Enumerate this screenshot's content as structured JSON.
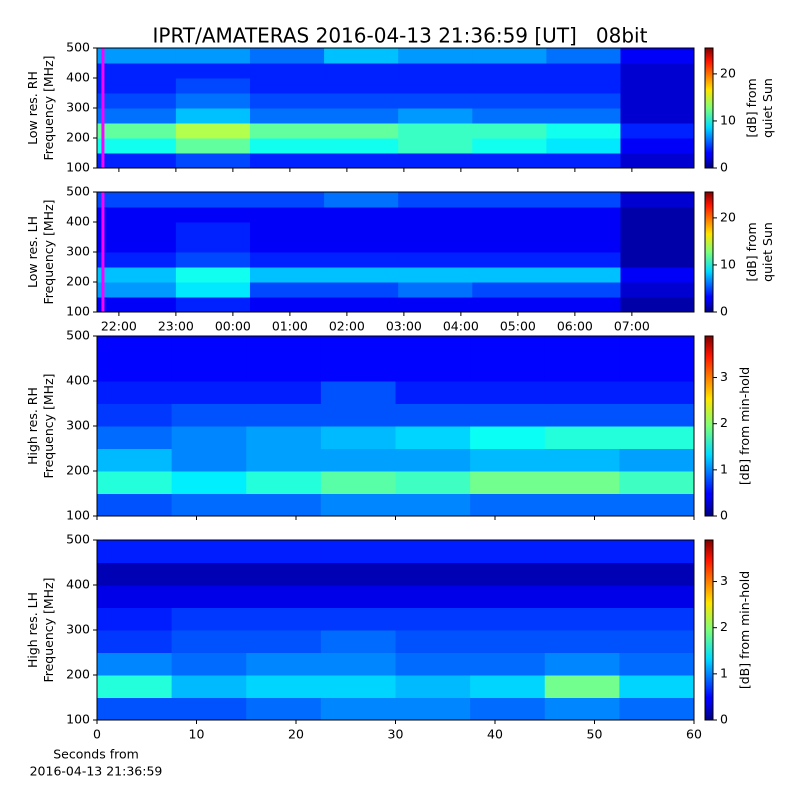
{
  "figure": {
    "title": "IPRT/AMATERAS 2016-04-13 21:36:59 [UT]   08bit"
  },
  "chart_data": [
    {
      "type": "heatmap",
      "ylabel": [
        "Low res. RH",
        "Frequency [MHz]"
      ],
      "xlim": [
        21.616,
        32.09
      ],
      "ylim": [
        100,
        500
      ],
      "yticks": [
        100,
        200,
        300,
        400,
        500
      ],
      "xticks": [
        {
          "value": 22,
          "label": "22:00"
        },
        {
          "value": 23,
          "label": "23:00"
        },
        {
          "value": 24,
          "label": "00:00"
        },
        {
          "value": 25,
          "label": "01:00"
        },
        {
          "value": 26,
          "label": "02:00"
        },
        {
          "value": 27,
          "label": "03:00"
        },
        {
          "value": 28,
          "label": "04:00"
        },
        {
          "value": 29,
          "label": "05:00"
        },
        {
          "value": 30,
          "label": "06:00"
        },
        {
          "value": 31,
          "label": "07:00"
        }
      ],
      "show_xtick_labels": false,
      "xbins": [
        21.616,
        23,
        24.3,
        25.6,
        26.9,
        28.2,
        29.5,
        30.8,
        32.09
      ],
      "ybins": [
        100,
        150,
        200,
        250,
        300,
        350,
        400,
        450,
        500
      ],
      "values": [
        [
          4,
          5,
          4,
          4,
          4,
          4,
          4,
          2
        ],
        [
          10,
          12,
          10,
          10,
          11,
          10,
          9,
          3
        ],
        [
          12,
          14,
          12,
          12,
          11,
          11,
          10,
          4
        ],
        [
          6,
          8,
          6,
          6,
          7,
          6,
          6,
          2
        ],
        [
          5,
          6,
          5,
          5,
          5,
          5,
          5,
          2
        ],
        [
          4,
          5,
          4,
          4,
          4,
          4,
          4,
          2
        ],
        [
          4,
          4,
          4,
          4,
          4,
          4,
          4,
          2
        ],
        [
          7,
          7,
          6,
          8,
          7,
          7,
          6,
          3
        ]
      ],
      "marker": {
        "x": 21.72,
        "color": "#ff00ff"
      },
      "colormap": "jet",
      "clim": [
        0,
        25.5
      ],
      "cbar_ticks": [
        0,
        10,
        20
      ],
      "cbar_label": [
        "[dB] from",
        "quiet Sun"
      ]
    },
    {
      "type": "heatmap",
      "ylabel": [
        "Low res. LH",
        "Frequency [MHz]"
      ],
      "xlim": [
        21.616,
        32.09
      ],
      "ylim": [
        100,
        500
      ],
      "yticks": [
        100,
        200,
        300,
        400,
        500
      ],
      "xticks": [
        {
          "value": 22,
          "label": "22:00"
        },
        {
          "value": 23,
          "label": "23:00"
        },
        {
          "value": 24,
          "label": "00:00"
        },
        {
          "value": 25,
          "label": "01:00"
        },
        {
          "value": 26,
          "label": "02:00"
        },
        {
          "value": 27,
          "label": "03:00"
        },
        {
          "value": 28,
          "label": "04:00"
        },
        {
          "value": 29,
          "label": "05:00"
        },
        {
          "value": 30,
          "label": "06:00"
        },
        {
          "value": 31,
          "label": "07:00"
        }
      ],
      "show_xtick_labels": true,
      "xbins": [
        21.616,
        23,
        24.3,
        25.6,
        26.9,
        28.2,
        29.5,
        30.8,
        32.09
      ],
      "ybins": [
        100,
        150,
        200,
        250,
        300,
        350,
        400,
        450,
        500
      ],
      "values": [
        [
          3,
          4,
          3,
          3,
          3,
          3,
          3,
          1
        ],
        [
          7,
          9,
          5,
          5,
          6,
          5,
          5,
          2
        ],
        [
          8,
          10,
          8,
          8,
          8,
          8,
          8,
          3
        ],
        [
          4,
          5,
          4,
          4,
          4,
          4,
          4,
          1
        ],
        [
          3,
          4,
          3,
          3,
          3,
          3,
          3,
          1
        ],
        [
          3,
          4,
          3,
          3,
          3,
          3,
          3,
          1
        ],
        [
          3,
          3,
          3,
          3,
          3,
          3,
          3,
          1
        ],
        [
          5,
          5,
          5,
          6,
          5,
          5,
          5,
          2
        ]
      ],
      "marker": {
        "x": 21.72,
        "color": "#ff00ff"
      },
      "colormap": "jet",
      "clim": [
        0,
        25.5
      ],
      "cbar_ticks": [
        0,
        10,
        20
      ],
      "cbar_label": [
        "[dB] from",
        "quiet Sun"
      ]
    },
    {
      "type": "heatmap",
      "ylabel": [
        "High res. RH",
        "Frequency [MHz]"
      ],
      "xlim": [
        0,
        60
      ],
      "ylim": [
        100,
        500
      ],
      "yticks": [
        100,
        200,
        300,
        400,
        500
      ],
      "xticks": [
        0,
        10,
        20,
        30,
        40,
        50,
        60
      ],
      "show_xtick_labels": false,
      "xbins": [
        0,
        7.5,
        15,
        22.5,
        30,
        37.5,
        45,
        52.5,
        60
      ],
      "ybins": [
        100,
        150,
        200,
        250,
        300,
        350,
        400,
        450,
        500
      ],
      "values": [
        [
          0.8,
          0.9,
          0.9,
          1.0,
          1.0,
          0.9,
          0.9,
          0.9
        ],
        [
          1.6,
          1.4,
          1.6,
          1.8,
          1.7,
          1.9,
          1.9,
          1.7
        ],
        [
          1.2,
          1.0,
          1.1,
          1.1,
          1.1,
          1.2,
          1.2,
          1.1
        ],
        [
          0.9,
          1.0,
          1.1,
          1.2,
          1.3,
          1.5,
          1.6,
          1.6
        ],
        [
          0.7,
          0.8,
          0.8,
          0.8,
          0.8,
          0.8,
          0.8,
          0.8
        ],
        [
          0.6,
          0.6,
          0.6,
          0.8,
          0.6,
          0.6,
          0.6,
          0.6
        ],
        [
          0.5,
          0.5,
          0.5,
          0.5,
          0.5,
          0.5,
          0.5,
          0.5
        ],
        [
          0.5,
          0.5,
          0.5,
          0.5,
          0.5,
          0.5,
          0.5,
          0.5
        ]
      ],
      "colormap": "jet",
      "clim": [
        0,
        3.9
      ],
      "cbar_ticks": [
        0,
        1,
        2,
        3
      ],
      "cbar_label": [
        "[dB] from min-hold"
      ]
    },
    {
      "type": "heatmap",
      "ylabel": [
        "High res. LH",
        "Frequency [MHz]"
      ],
      "xlim": [
        0,
        60
      ],
      "ylim": [
        100,
        500
      ],
      "yticks": [
        100,
        200,
        300,
        400,
        500
      ],
      "xticks": [
        0,
        10,
        20,
        30,
        40,
        50,
        60
      ],
      "show_xtick_labels": true,
      "xlabel": [
        "Seconds from",
        "2016-04-13 21:36:59"
      ],
      "xbins": [
        0,
        7.5,
        15,
        22.5,
        30,
        37.5,
        45,
        52.5,
        60
      ],
      "ybins": [
        100,
        150,
        200,
        250,
        300,
        350,
        400,
        450,
        500
      ],
      "values": [
        [
          0.8,
          0.8,
          0.9,
          1.0,
          1.0,
          0.9,
          1.0,
          0.9
        ],
        [
          1.6,
          1.2,
          1.3,
          1.3,
          1.2,
          1.3,
          1.9,
          1.3
        ],
        [
          1.0,
          0.9,
          1.0,
          1.0,
          0.9,
          0.9,
          1.0,
          0.9
        ],
        [
          0.7,
          0.8,
          0.8,
          0.9,
          0.8,
          0.8,
          0.8,
          0.8
        ],
        [
          0.6,
          0.7,
          0.7,
          0.7,
          0.7,
          0.7,
          0.7,
          0.7
        ],
        [
          0.4,
          0.4,
          0.4,
          0.4,
          0.4,
          0.4,
          0.4,
          0.4
        ],
        [
          0.2,
          0.2,
          0.2,
          0.2,
          0.2,
          0.2,
          0.2,
          0.2
        ],
        [
          0.6,
          0.6,
          0.6,
          0.6,
          0.6,
          0.6,
          0.6,
          0.6
        ]
      ],
      "colormap": "jet",
      "clim": [
        0,
        3.9
      ],
      "cbar_ticks": [
        0,
        1,
        2,
        3
      ],
      "cbar_label": [
        "[dB] from min-hold"
      ]
    }
  ]
}
